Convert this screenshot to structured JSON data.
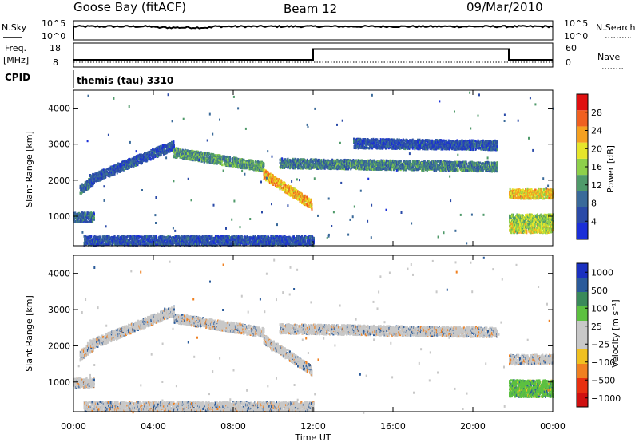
{
  "header": {
    "station": "Goose Bay (fitACF)",
    "beam": "Beam 12",
    "date": "09/Mar/2010"
  },
  "noise_panel": {
    "left_label": "N.Sky",
    "right_label": "N.Search",
    "left_ticks": [
      "10^5",
      "10^0"
    ],
    "right_ticks": [
      "10^5",
      "10^0"
    ]
  },
  "freq_panel": {
    "left_label_1": "Freq.",
    "left_label_2": "[MHz]",
    "right_label": "Nave",
    "left_ticks": [
      "18",
      "8"
    ],
    "right_ticks": [
      "60",
      "0"
    ],
    "freq_steps": [
      {
        "start_h": 0,
        "end_h": 12,
        "value": 11
      },
      {
        "start_h": 12,
        "end_h": 21.8,
        "value": 15.5
      },
      {
        "start_h": 21.8,
        "end_h": 24,
        "value": 11
      }
    ],
    "nave_level": 10
  },
  "cpid": {
    "label": "CPID",
    "value": "themis (tau) 3310"
  },
  "power_panel": {
    "ylabel": "Slant Range [km]",
    "yticks": [
      "1000",
      "2000",
      "3000",
      "4000"
    ],
    "colorbar_label": "Power [dB]",
    "colorbar_ticks": [
      "4",
      "8",
      "12",
      "16",
      "20",
      "24",
      "28"
    ],
    "colors": [
      "#1a2fd8",
      "#2a4aa8",
      "#3a6a9a",
      "#4f9a6a",
      "#8ed04a",
      "#e6e62a",
      "#f5a020",
      "#f06020",
      "#e01010"
    ]
  },
  "velocity_panel": {
    "ylabel": "Slant Range [km]",
    "yticks": [
      "1000",
      "2000",
      "3000",
      "4000"
    ],
    "colorbar_label": "Velocity [m s⁻¹]",
    "colorbar_ticks": [
      "1000",
      "500",
      "100",
      "25",
      "−25",
      "−100",
      "−500",
      "−1000"
    ],
    "colors": [
      "#1a30c0",
      "#2a5a9a",
      "#3a8a5a",
      "#5cc040",
      "#c8c8c8",
      "#c8c8c8",
      "#f0c020",
      "#f08020",
      "#e83010",
      "#d01010"
    ]
  },
  "time_axis": {
    "xlabel": "Time UT",
    "ticks": [
      "00:00",
      "04:00",
      "08:00",
      "12:00",
      "16:00",
      "20:00",
      "00:00"
    ]
  },
  "chart_data": [
    {
      "type": "line",
      "title": "N.Sky",
      "x_range_hours": [
        0,
        24
      ],
      "y_scale": "log",
      "yticks": [
        "10^0",
        "10^5"
      ],
      "series": [
        {
          "name": "N.Sky",
          "level_log10": 3.6
        }
      ]
    },
    {
      "type": "line",
      "title": "Freq.",
      "ylabel": "[MHz]",
      "x_range_hours": [
        0,
        24
      ],
      "ylim": [
        8,
        18
      ],
      "series": [
        {
          "name": "Freq.",
          "x": [
            0,
            12,
            12,
            21.8,
            21.8,
            24
          ],
          "values": [
            11,
            11,
            15.5,
            15.5,
            11,
            11
          ]
        },
        {
          "name": "Nave",
          "x": [
            0,
            24
          ],
          "values": [
            10,
            10
          ]
        }
      ]
    },
    {
      "type": "heatmap",
      "title": "Power [dB]",
      "ylabel": "Slant Range [km]",
      "xlabel": "Time UT",
      "x_range_hours": [
        0,
        24
      ],
      "ylim_km": [
        180,
        4500
      ],
      "clim": [
        0,
        30
      ],
      "bands": [
        {
          "t_start": 0.3,
          "t_end": 1.0,
          "range_start": 1750,
          "range_end": 2050,
          "level_db": 8
        },
        {
          "t_start": 0.8,
          "t_end": 5.0,
          "range_start": 2050,
          "range_end": 3000,
          "level_db": 6
        },
        {
          "t_start": 5.0,
          "t_end": 9.5,
          "range_start": 2800,
          "range_end": 2400,
          "level_db": 12
        },
        {
          "t_start": 9.5,
          "t_end": 11.9,
          "range_start": 2200,
          "range_end": 1350,
          "level_db": 22
        },
        {
          "t_start": 10.3,
          "t_end": 21.2,
          "range_start": 2500,
          "range_end": 2400,
          "level_db": 10
        },
        {
          "t_start": 14.0,
          "t_end": 21.2,
          "range_start": 3050,
          "range_end": 3000,
          "level_db": 6
        },
        {
          "t_start": 0.0,
          "t_end": 1.0,
          "range_start": 1000,
          "range_end": 1000,
          "level_db": 8
        },
        {
          "t_start": 0.5,
          "t_end": 12.0,
          "range_start": 350,
          "range_end": 350,
          "level_db": 6
        },
        {
          "t_start": 21.8,
          "t_end": 24.0,
          "range_start": 1650,
          "range_end": 1650,
          "level_db": 20
        },
        {
          "t_start": 21.8,
          "t_end": 24.0,
          "range_start": 950,
          "range_end": 950,
          "level_db": 16
        },
        {
          "t_start": 21.8,
          "t_end": 24.0,
          "range_start": 700,
          "range_end": 700,
          "level_db": 18
        }
      ]
    },
    {
      "type": "heatmap",
      "title": "Velocity [m s⁻¹]",
      "ylabel": "Slant Range [km]",
      "xlabel": "Time UT",
      "x_range_hours": [
        0,
        24
      ],
      "ylim_km": [
        180,
        4500
      ],
      "clim": [
        -1000,
        1000
      ],
      "bands": [
        {
          "t_start": 0.3,
          "t_end": 1.0,
          "range_start": 1750,
          "range_end": 2050,
          "velocity": 0
        },
        {
          "t_start": 0.8,
          "t_end": 5.0,
          "range_start": 2050,
          "range_end": 3000,
          "velocity": 0
        },
        {
          "t_start": 5.0,
          "t_end": 9.5,
          "range_start": 2800,
          "range_end": 2400,
          "velocity": 0
        },
        {
          "t_start": 9.5,
          "t_end": 11.9,
          "range_start": 2200,
          "range_end": 1350,
          "velocity": 0
        },
        {
          "t_start": 10.3,
          "t_end": 21.2,
          "range_start": 2500,
          "range_end": 2400,
          "velocity": 0
        },
        {
          "t_start": 0.0,
          "t_end": 1.0,
          "range_start": 1000,
          "range_end": 1000,
          "velocity": 0
        },
        {
          "t_start": 0.5,
          "t_end": 12.0,
          "range_start": 350,
          "range_end": 350,
          "velocity": -60
        },
        {
          "t_start": 21.8,
          "t_end": 24.0,
          "range_start": 1650,
          "range_end": 1650,
          "velocity": 0
        },
        {
          "t_start": 21.8,
          "t_end": 24.0,
          "range_start": 950,
          "range_end": 950,
          "velocity": 100
        },
        {
          "t_start": 21.8,
          "t_end": 24.0,
          "range_start": 750,
          "range_end": 750,
          "velocity": 100
        }
      ]
    }
  ]
}
